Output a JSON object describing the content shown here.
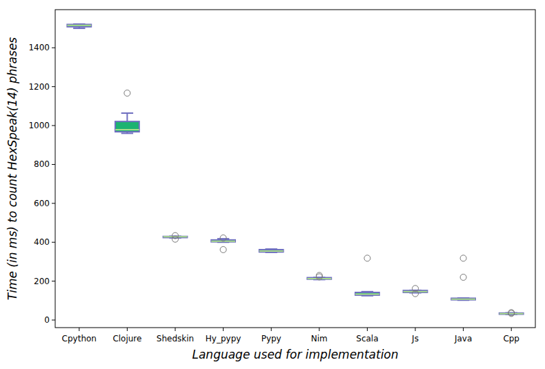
{
  "chart_data": {
    "type": "box",
    "x_label": "Language used for implementation",
    "y_label": "Time (in ms) to count HexSpeak(14) phrases",
    "categories": [
      "Cpython",
      "Clojure",
      "Shedskin",
      "Hy_pypy",
      "Pypy",
      "Nim",
      "Scala",
      "Js",
      "Java",
      "Cpp"
    ],
    "min": [
      1500,
      960,
      422,
      400,
      348,
      208,
      125,
      140,
      102,
      29
    ],
    "q1": [
      1508,
      968,
      424,
      402,
      350,
      210,
      128,
      142,
      104,
      30
    ],
    "median": [
      1515,
      979,
      428,
      405,
      355,
      213,
      133,
      146,
      107,
      33
    ],
    "q3": [
      1520,
      1021,
      430,
      412,
      362,
      218,
      142,
      152,
      112,
      36
    ],
    "max": [
      1522,
      1064,
      431,
      418,
      365,
      219,
      146,
      153,
      113,
      37
    ],
    "outliers": [
      [],
      [
        1167
      ],
      [
        434,
        416
      ],
      [
        422,
        362
      ],
      [],
      [
        229,
        222
      ],
      [
        318
      ],
      [
        162,
        136
      ],
      [
        318,
        220
      ],
      [
        38,
        34
      ]
    ],
    "color": "#1db371",
    "ylim": [
      -39,
      1596
    ],
    "yticks": [
      0,
      200,
      400,
      600,
      800,
      1000,
      1200,
      1400
    ],
    "grid": false
  }
}
